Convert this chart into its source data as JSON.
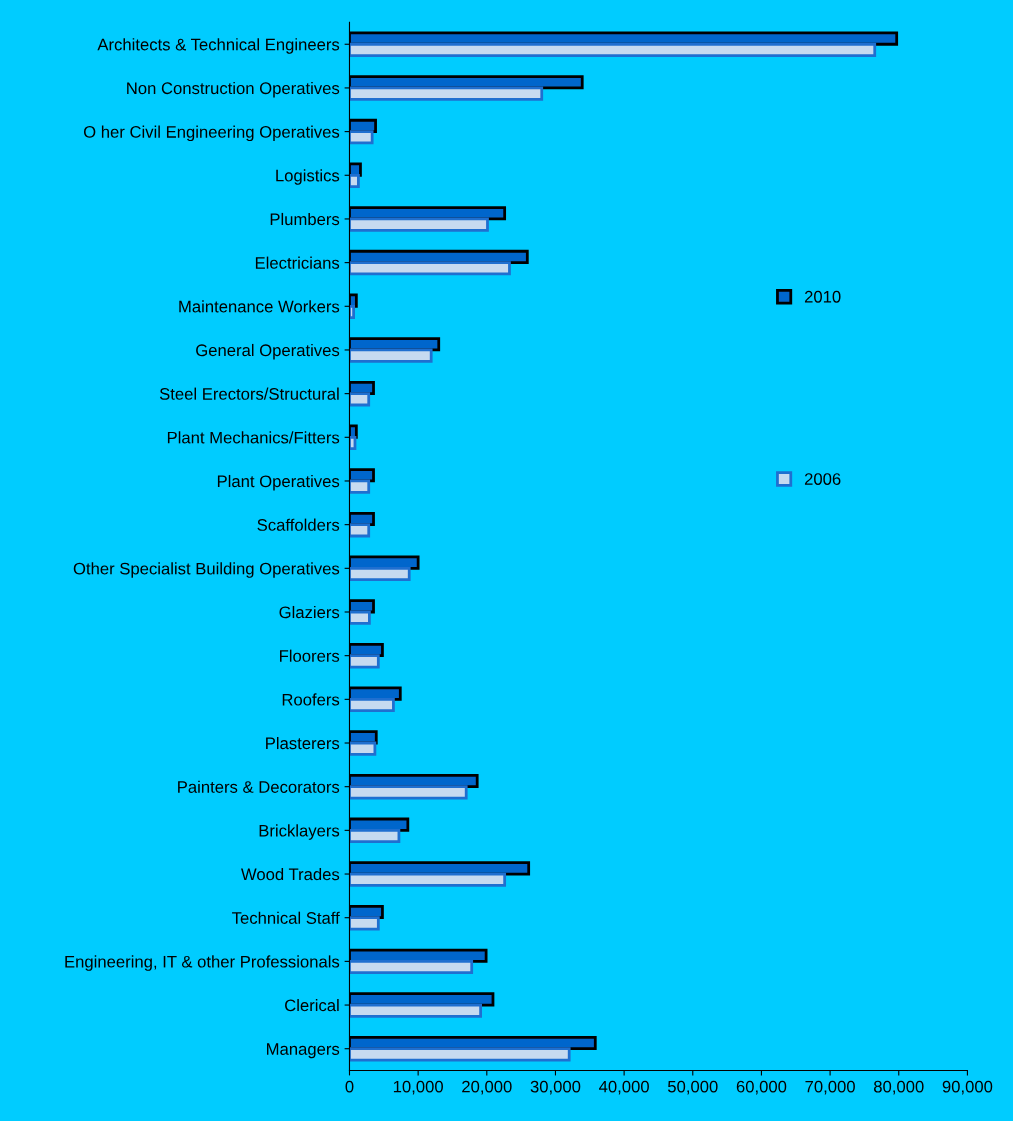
{
  "chart_data": {
    "type": "bar",
    "orientation": "horizontal",
    "categories": [
      "Architects & Technical Engineers",
      "Non Construction Operatives",
      "O her Civil Engineering Operatives",
      "Logistics",
      "Plumbers",
      "Electricians",
      "Maintenance Workers",
      "General Operatives",
      "Steel Erectors/Structural",
      "Plant Mechanics/Fitters",
      "Plant Operatives",
      "Scaffolders",
      "Other Specialist Building Operatives",
      "Glaziers",
      "Floorers",
      "Roofers",
      "Plasterers",
      "Painters & Decorators",
      "Bricklayers",
      "Wood Trades",
      "Technical Staff",
      "Engineering, IT & other Professionals",
      "Clerical",
      "Managers"
    ],
    "series": [
      {
        "name": "2010",
        "color": "#0066cc",
        "values": [
          79700,
          33900,
          3800,
          1600,
          22600,
          25900,
          1000,
          13000,
          3500,
          1000,
          3500,
          3500,
          10000,
          3500,
          4800,
          7400,
          3900,
          18600,
          8500,
          26100,
          4800,
          19900,
          20900,
          35800
        ]
      },
      {
        "name": "2006",
        "color": "#c6daf0",
        "values": [
          76500,
          28000,
          3300,
          1300,
          20100,
          23300,
          600,
          11900,
          2800,
          800,
          2800,
          2800,
          8700,
          2900,
          4200,
          6400,
          3700,
          17000,
          7200,
          22600,
          4200,
          17800,
          19100,
          32000
        ]
      }
    ],
    "xlim": [
      0,
      90000
    ],
    "xticks": [
      0,
      {
        "value": 10000,
        "label": "10,000"
      },
      {
        "value": 20000,
        "label": "20,000"
      },
      {
        "value": 30000,
        "label": "30,000"
      },
      {
        "value": 40000,
        "label": "40,000"
      },
      {
        "value": 50000,
        "label": "50,000"
      },
      {
        "value": 60000,
        "label": "60,000"
      },
      {
        "value": 70000,
        "label": "70,000"
      },
      {
        "value": 80000,
        "label": "80,000"
      },
      {
        "value": 90000,
        "label": "90,000"
      }
    ],
    "grid": false,
    "legend": "right"
  }
}
